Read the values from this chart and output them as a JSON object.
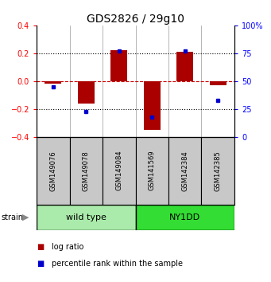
{
  "title": "GDS2826 / 29g10",
  "samples": [
    "GSM149076",
    "GSM149078",
    "GSM149084",
    "GSM141569",
    "GSM142384",
    "GSM142385"
  ],
  "groups": [
    {
      "name": "wild type",
      "color": "#AAEAAA",
      "count": 3
    },
    {
      "name": "NY1DD",
      "color": "#33DD33",
      "count": 3
    }
  ],
  "log_ratio": [
    -0.02,
    -0.16,
    0.22,
    -0.35,
    0.21,
    -0.03
  ],
  "percentile_rank": [
    45,
    23,
    77,
    18,
    77,
    33
  ],
  "ylim_left": [
    -0.4,
    0.4
  ],
  "ylim_right": [
    0,
    100
  ],
  "yticks_left": [
    -0.4,
    -0.2,
    0.0,
    0.2,
    0.4
  ],
  "yticks_right": [
    0,
    25,
    50,
    75,
    100
  ],
  "bar_color": "#AA0000",
  "dot_color": "#0000CC",
  "zero_line_color": "#CC0000",
  "hline_color": "#000000",
  "label_bg_color": "#C8C8C8",
  "title_fontsize": 10,
  "tick_fontsize": 7,
  "sample_fontsize": 6,
  "legend_fontsize": 7,
  "strain_fontsize": 8
}
